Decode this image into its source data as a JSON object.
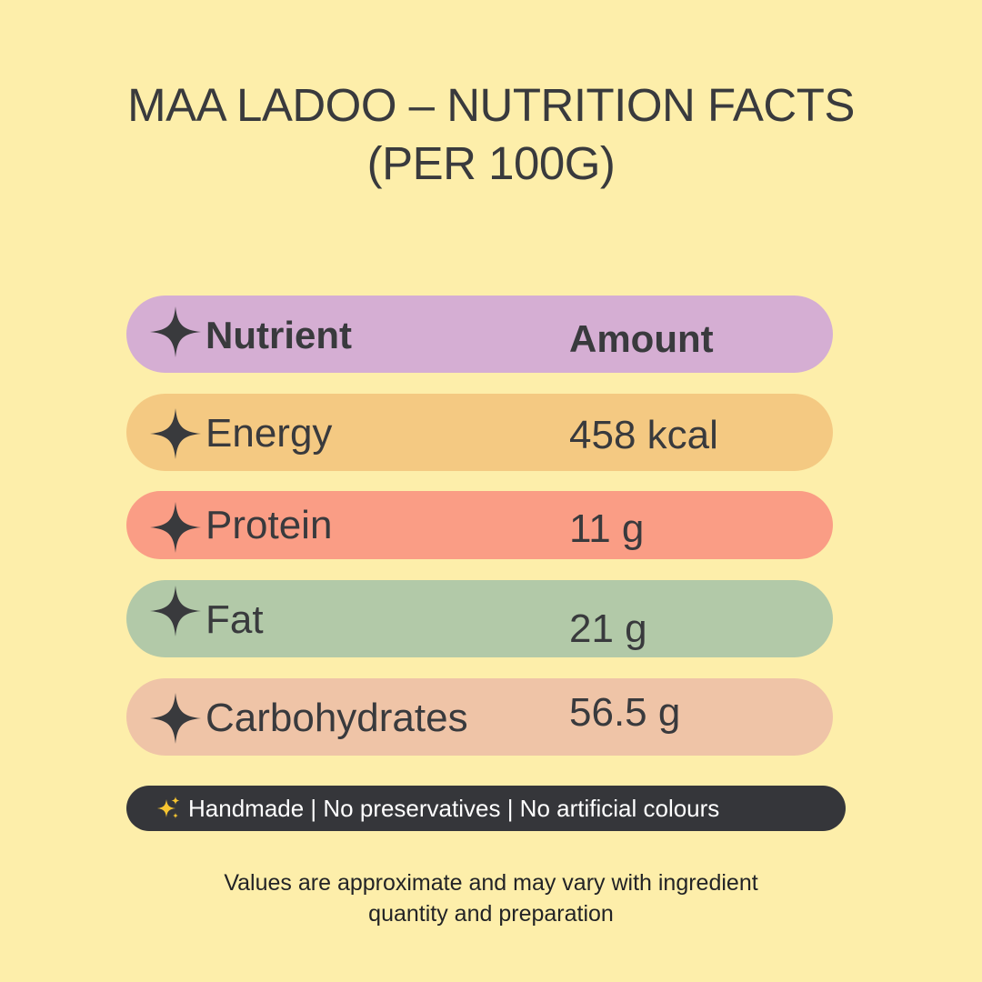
{
  "title": {
    "line1": "MAA LADOO – NUTRITION FACTS",
    "line2": "(PER 100G)"
  },
  "table": {
    "header": {
      "nutrient": "Nutrient",
      "amount": "Amount",
      "color": "#d5aed3"
    },
    "rows": [
      {
        "nutrient": "Energy",
        "amount": "458 kcal",
        "color": "#f4c982"
      },
      {
        "nutrient": "Protein",
        "amount": "11 g",
        "color": "#fa9d85"
      },
      {
        "nutrient": "Fat",
        "amount": "21 g",
        "color": "#b2c9a8"
      },
      {
        "nutrient": "Carbohydrates",
        "amount": "56.5 g",
        "color": "#efc4a7"
      }
    ],
    "icon": "four-point-star-icon",
    "icon_color": "#393a3d"
  },
  "badge": {
    "icon": "sparkles-icon",
    "text": "Handmade | No preservatives | No artificial colours",
    "background": "#35363a"
  },
  "footnote": {
    "line1": "Values are approximate and may vary with ingredient",
    "line2": "quantity and preparation"
  },
  "background": "#fdeeaa"
}
